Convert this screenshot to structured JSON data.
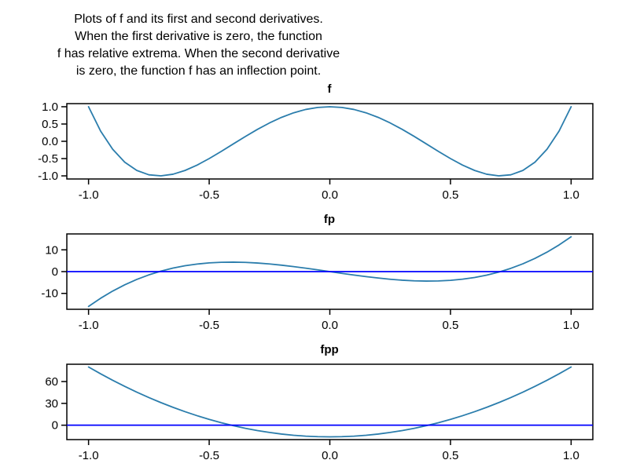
{
  "header": {
    "lines": [
      "Plots of f and its first and second derivatives.",
      "When the first derivative is zero, the function",
      "f has relative extrema. When the second derivative",
      "is zero, the function f has an inflection point."
    ]
  },
  "colors": {
    "series": "#2b7dac",
    "zero_line": "#0000ff",
    "frame": "#000000",
    "text": "#000000",
    "background": "#ffffff"
  },
  "chart_data": [
    {
      "type": "line",
      "title": "f",
      "xlabel": "",
      "ylabel": "",
      "grid": false,
      "legend": "none",
      "xlim": [
        -1.09,
        1.09
      ],
      "ylim": [
        -1.09,
        1.09
      ],
      "xticks": [
        -1.0,
        -0.5,
        0.0,
        0.5,
        1.0
      ],
      "xtick_labels": [
        "-1.0",
        "-0.5",
        "0.0",
        "0.5",
        "1.0"
      ],
      "yticks": [
        1.0,
        0.5,
        0.0,
        -0.5,
        -1.0
      ],
      "ytick_labels": [
        "1.0",
        "0.5",
        "0.0",
        "-0.5",
        "-1.0"
      ],
      "zero_line": false,
      "x": [
        -1,
        -0.95,
        -0.9,
        -0.85,
        -0.8,
        -0.75,
        -0.7,
        -0.65,
        -0.6,
        -0.55,
        -0.5,
        -0.45,
        -0.4,
        -0.35,
        -0.3,
        -0.25,
        -0.2,
        -0.15,
        -0.1,
        -0.05,
        0,
        0.05,
        0.1,
        0.15,
        0.2,
        0.25,
        0.3,
        0.35,
        0.4,
        0.45,
        0.5,
        0.55,
        0.6,
        0.65,
        0.7,
        0.75,
        0.8,
        0.85,
        0.9,
        0.95,
        1
      ],
      "values": [
        1,
        0.296,
        -0.231,
        -0.604,
        -0.843,
        -0.969,
        -0.999,
        -0.952,
        -0.843,
        -0.688,
        -0.5,
        -0.292,
        -0.075,
        0.14,
        0.345,
        0.531,
        0.693,
        0.824,
        0.921,
        0.98,
        1,
        0.98,
        0.921,
        0.824,
        0.693,
        0.531,
        0.345,
        0.14,
        -0.075,
        -0.292,
        -0.5,
        -0.688,
        -0.843,
        -0.952,
        -0.999,
        -0.969,
        -0.843,
        -0.604,
        -0.231,
        0.296,
        1
      ]
    },
    {
      "type": "line",
      "title": "fp",
      "xlabel": "",
      "ylabel": "",
      "grid": false,
      "legend": "none",
      "xlim": [
        -1.09,
        1.09
      ],
      "ylim": [
        -17.3,
        17.3
      ],
      "xticks": [
        -1.0,
        -0.5,
        0.0,
        0.5,
        1.0
      ],
      "xtick_labels": [
        "-1.0",
        "-0.5",
        "0.0",
        "0.5",
        "1.0"
      ],
      "yticks": [
        10,
        0,
        -10
      ],
      "ytick_labels": [
        "10",
        "0",
        "-10"
      ],
      "zero_line": true,
      "x": [
        -1,
        -0.95,
        -0.9,
        -0.85,
        -0.8,
        -0.75,
        -0.7,
        -0.65,
        -0.6,
        -0.55,
        -0.5,
        -0.45,
        -0.4,
        -0.35,
        -0.3,
        -0.25,
        -0.2,
        -0.15,
        -0.1,
        -0.05,
        0,
        0.05,
        0.1,
        0.15,
        0.2,
        0.25,
        0.3,
        0.35,
        0.4,
        0.45,
        0.5,
        0.55,
        0.6,
        0.65,
        0.7,
        0.75,
        0.8,
        0.85,
        0.9,
        0.95,
        1
      ],
      "values": [
        -16,
        -12.236,
        -8.928,
        -6.052,
        -3.584,
        -1.5,
        0.224,
        1.612,
        2.688,
        3.476,
        4,
        4.284,
        4.352,
        4.228,
        3.936,
        3.5,
        2.944,
        2.292,
        1.568,
        0.796,
        0,
        -0.796,
        -1.568,
        -2.292,
        -2.944,
        -3.5,
        -3.936,
        -4.228,
        -4.352,
        -4.284,
        -4,
        -3.476,
        -2.688,
        -1.612,
        -0.224,
        1.5,
        3.584,
        6.052,
        8.928,
        12.236,
        16
      ]
    },
    {
      "type": "line",
      "title": "fpp",
      "xlabel": "",
      "ylabel": "",
      "grid": false,
      "legend": "none",
      "xlim": [
        -1.09,
        1.09
      ],
      "ylim": [
        -19.8,
        83.8
      ],
      "xticks": [
        -1.0,
        -0.5,
        0.0,
        0.5,
        1.0
      ],
      "xtick_labels": [
        "-1.0",
        "-0.5",
        "0.0",
        "0.5",
        "1.0"
      ],
      "yticks": [
        60,
        30,
        0
      ],
      "ytick_labels": [
        "60",
        "30",
        "0"
      ],
      "zero_line": true,
      "x": [
        -1,
        -0.95,
        -0.9,
        -0.85,
        -0.8,
        -0.75,
        -0.7,
        -0.65,
        -0.6,
        -0.55,
        -0.5,
        -0.45,
        -0.4,
        -0.35,
        -0.3,
        -0.25,
        -0.2,
        -0.15,
        -0.1,
        -0.05,
        0,
        0.05,
        0.1,
        0.15,
        0.2,
        0.25,
        0.3,
        0.35,
        0.4,
        0.45,
        0.5,
        0.55,
        0.6,
        0.65,
        0.7,
        0.75,
        0.8,
        0.85,
        0.9,
        0.95,
        1
      ],
      "values": [
        80,
        70.64,
        61.76,
        53.36,
        45.44,
        38,
        31.04,
        24.56,
        18.56,
        13.04,
        8,
        3.44,
        -0.64,
        -4.24,
        -7.36,
        -10,
        -12.16,
        -13.84,
        -15.04,
        -15.76,
        -16,
        -15.76,
        -15.04,
        -13.84,
        -12.16,
        -10,
        -7.36,
        -4.24,
        -0.64,
        3.44,
        8,
        13.04,
        18.56,
        24.56,
        31.04,
        38,
        45.44,
        53.36,
        61.76,
        70.64,
        80
      ]
    }
  ]
}
